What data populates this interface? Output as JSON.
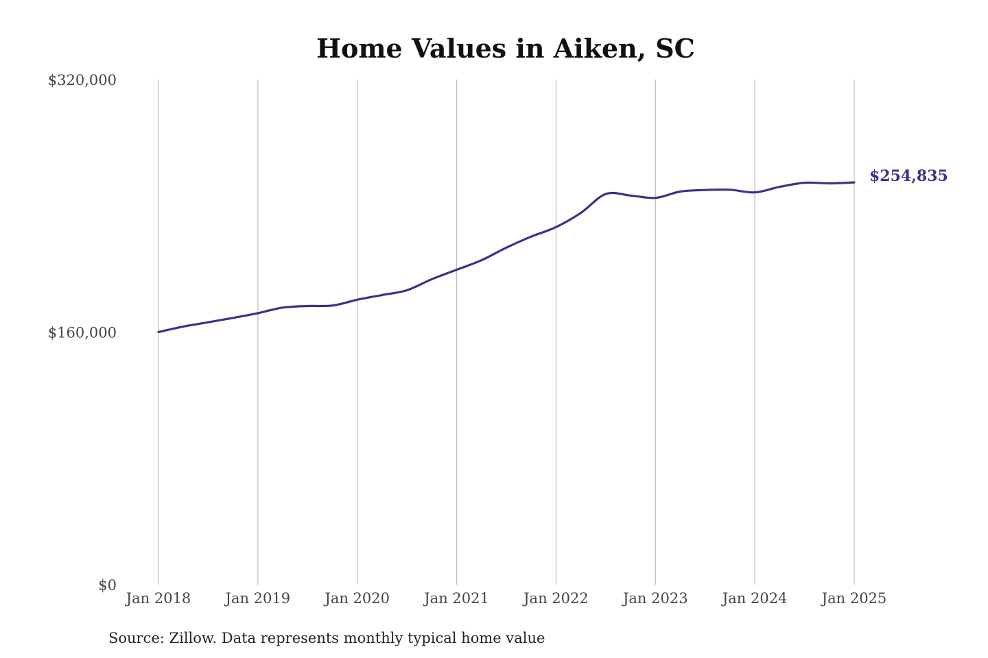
{
  "chart_data": {
    "type": "line",
    "title": "Home Values in Aiken, SC",
    "xlabel": "",
    "ylabel": "",
    "ylim": [
      0,
      320000
    ],
    "xlim": [
      "2018-01",
      "2025-01"
    ],
    "grid": "vertical",
    "legend": "none",
    "y_ticks": [
      {
        "value": 0,
        "label": "$0"
      },
      {
        "value": 160000,
        "label": "$160,000"
      },
      {
        "value": 320000,
        "label": "$320,000"
      }
    ],
    "x_ticks": [
      {
        "value": "2018-01",
        "label": "Jan 2018"
      },
      {
        "value": "2019-01",
        "label": "Jan 2019"
      },
      {
        "value": "2020-01",
        "label": "Jan 2020"
      },
      {
        "value": "2021-01",
        "label": "Jan 2021"
      },
      {
        "value": "2022-01",
        "label": "Jan 2022"
      },
      {
        "value": "2023-01",
        "label": "Jan 2023"
      },
      {
        "value": "2024-01",
        "label": "Jan 2024"
      },
      {
        "value": "2025-01",
        "label": "Jan 2025"
      }
    ],
    "series": [
      {
        "color": "#35358a",
        "points": [
          {
            "x": "2018-01",
            "y": 160000
          },
          {
            "x": "2018-04",
            "y": 163500
          },
          {
            "x": "2018-07",
            "y": 166200
          },
          {
            "x": "2018-10",
            "y": 169000
          },
          {
            "x": "2019-01",
            "y": 172000
          },
          {
            "x": "2019-04",
            "y": 175500
          },
          {
            "x": "2019-07",
            "y": 176500
          },
          {
            "x": "2019-10",
            "y": 176800
          },
          {
            "x": "2020-01",
            "y": 180500
          },
          {
            "x": "2020-04",
            "y": 183500
          },
          {
            "x": "2020-07",
            "y": 186500
          },
          {
            "x": "2020-10",
            "y": 193500
          },
          {
            "x": "2021-01",
            "y": 199500
          },
          {
            "x": "2021-04",
            "y": 205500
          },
          {
            "x": "2021-07",
            "y": 213500
          },
          {
            "x": "2021-10",
            "y": 220500
          },
          {
            "x": "2022-01",
            "y": 226500
          },
          {
            "x": "2022-04",
            "y": 235500
          },
          {
            "x": "2022-07",
            "y": 247500
          },
          {
            "x": "2022-10",
            "y": 246500
          },
          {
            "x": "2023-01",
            "y": 245000
          },
          {
            "x": "2023-04",
            "y": 249000
          },
          {
            "x": "2023-07",
            "y": 250000
          },
          {
            "x": "2023-10",
            "y": 250200
          },
          {
            "x": "2024-01",
            "y": 248500
          },
          {
            "x": "2024-04",
            "y": 252000
          },
          {
            "x": "2024-07",
            "y": 254600
          },
          {
            "x": "2024-10",
            "y": 254200
          },
          {
            "x": "2025-01",
            "y": 254835
          }
        ],
        "end_label": "$254,835"
      }
    ],
    "source": "Source: Zillow. Data represents monthly typical home value"
  }
}
